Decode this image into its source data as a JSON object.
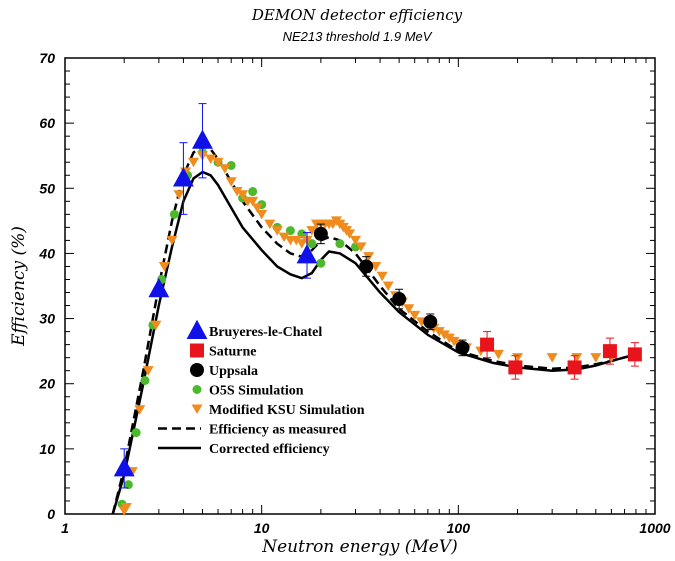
{
  "chart_data": {
    "type": "scatter",
    "title": "DEMON detector efficiency",
    "subtitle": "NE213 threshold 1.9 MeV",
    "xlabel": "Neutron energy (MeV)",
    "ylabel": "Efficiency (%)",
    "xscale": "log",
    "xlim": [
      1,
      1000
    ],
    "ylim": [
      0,
      70
    ],
    "x_ticks": [
      1,
      10,
      100,
      1000
    ],
    "x_tick_labels": [
      "1",
      "10",
      "100",
      "1000"
    ],
    "y_ticks": [
      0,
      10,
      20,
      30,
      40,
      50,
      60,
      70
    ],
    "y_tick_labels": [
      "0",
      "10",
      "20",
      "30",
      "40",
      "50",
      "60",
      "70"
    ],
    "legend_position": "center-left",
    "series": [
      {
        "name": "Bruyeres-le-Chatel",
        "marker": "triangle",
        "color": "#1010e8",
        "x": [
          2.0,
          3.0,
          4.0,
          5.0,
          17.0
        ],
        "y": [
          7.0,
          34.5,
          51.5,
          57.3,
          39.7
        ],
        "err": [
          3.0,
          0.0,
          5.5,
          5.7,
          3.5
        ]
      },
      {
        "name": "Saturne",
        "marker": "square",
        "color": "#e8141c",
        "x": [
          140,
          195,
          390,
          590,
          790
        ],
        "y": [
          26.0,
          22.5,
          22.5,
          25.0,
          24.5
        ],
        "err": [
          2.0,
          1.8,
          1.8,
          2.0,
          1.8
        ]
      },
      {
        "name": "Uppsala",
        "marker": "circle",
        "color": "#000000",
        "x": [
          20,
          34,
          50,
          72,
          105
        ],
        "y": [
          43.0,
          38.0,
          33.0,
          29.5,
          25.5
        ],
        "err": [
          1.5,
          1.5,
          1.5,
          1.2,
          1.2
        ]
      },
      {
        "name": "O5S Simulation",
        "marker": "small-circle",
        "color": "#4cb82c",
        "x": [
          1.95,
          2.1,
          2.3,
          2.55,
          2.8,
          3.1,
          3.6,
          4.2,
          5.0,
          6.0,
          7.0,
          8.0,
          9.0,
          10.0,
          12.0,
          14.0,
          16.0,
          18.0,
          20.0,
          25.0,
          30.0
        ],
        "y": [
          1.5,
          4.5,
          12.5,
          20.5,
          29.0,
          36.0,
          46.0,
          52.0,
          55.5,
          54.0,
          53.5,
          48.5,
          49.5,
          47.5,
          44.0,
          43.5,
          43.0,
          41.5,
          38.5,
          41.5,
          41.0
        ]
      },
      {
        "name": "Modified KSU Simulation",
        "marker": "down-triangle",
        "color": "#f08c1e",
        "x": [
          2.0,
          2.05,
          2.2,
          2.4,
          2.65,
          2.9,
          3.2,
          3.5,
          3.8,
          4.1,
          4.5,
          5.0,
          5.5,
          6.0,
          6.5,
          7.0,
          7.5,
          8.0,
          8.5,
          9.0,
          9.5,
          10.0,
          11.0,
          12.0,
          13.0,
          14.0,
          15.0,
          16.0,
          17.0,
          18.0,
          19.0,
          20.0,
          21.0,
          22.0,
          23.0,
          24.0,
          25.0,
          26.0,
          27.0,
          28.0,
          30.0,
          32.0,
          35.0,
          38.0,
          41.0,
          44.0,
          48.0,
          52.0,
          56.0,
          60.0,
          65.0,
          70.0,
          75.0,
          80.0,
          85.0,
          90.0,
          95.0,
          100.0,
          110.0,
          130.0,
          160.0,
          200.0,
          300.0,
          400.0,
          500.0,
          600.0
        ],
        "y": [
          0.5,
          1.0,
          6.5,
          16.0,
          22.0,
          29.0,
          38.0,
          42.0,
          49.0,
          52.5,
          54.0,
          55.0,
          54.5,
          54.0,
          53.0,
          51.0,
          49.5,
          49.0,
          48.0,
          48.0,
          47.0,
          46.0,
          44.5,
          43.5,
          42.5,
          42.0,
          42.0,
          41.5,
          42.0,
          43.5,
          44.5,
          44.5,
          44.5,
          44.5,
          44.5,
          45.0,
          44.5,
          44.0,
          43.5,
          43.0,
          42.0,
          41.0,
          39.5,
          38.0,
          36.5,
          35.0,
          33.5,
          32.5,
          31.5,
          30.5,
          29.5,
          29.0,
          28.5,
          28.0,
          27.5,
          27.0,
          26.5,
          26.0,
          25.5,
          25.0,
          24.5,
          24.0,
          24.0,
          24.0,
          24.0,
          24.0
        ]
      },
      {
        "name": "Efficiency as measured",
        "marker": "dashed-line",
        "color": "#000000",
        "x": [
          1.75,
          2.0,
          2.5,
          3.0,
          3.5,
          4.0,
          4.5,
          5.0,
          5.5,
          6.0,
          7.0,
          8.0,
          10.0,
          12.0,
          14.0,
          16.0,
          18.0,
          20.0,
          22.0,
          25.0,
          30.0,
          40.0,
          50.0,
          70.0,
          100.0,
          150.0,
          200.0,
          300.0,
          400.0,
          500.0,
          600.0,
          800.0
        ],
        "y": [
          0.0,
          7.0,
          22.0,
          35.0,
          45.0,
          52.0,
          55.5,
          56.5,
          56.0,
          54.5,
          51.0,
          48.0,
          44.0,
          41.5,
          40.0,
          39.5,
          40.5,
          42.0,
          42.5,
          42.0,
          40.0,
          35.0,
          31.5,
          28.0,
          25.0,
          23.5,
          22.8,
          22.3,
          22.5,
          23.0,
          23.5,
          24.5
        ]
      },
      {
        "name": "Corrected efficiency",
        "marker": "solid-line",
        "color": "#000000",
        "x": [
          1.75,
          2.0,
          2.5,
          3.0,
          3.5,
          4.0,
          4.5,
          5.0,
          5.5,
          6.0,
          7.0,
          8.0,
          10.0,
          12.0,
          14.0,
          16.0,
          18.0,
          20.0,
          22.0,
          25.0,
          30.0,
          40.0,
          50.0,
          70.0,
          100.0,
          150.0,
          200.0,
          300.0,
          400.0,
          500.0,
          600.0,
          800.0
        ],
        "y": [
          0.0,
          6.0,
          20.0,
          32.0,
          41.0,
          48.0,
          51.5,
          52.5,
          52.0,
          50.5,
          47.0,
          44.0,
          40.5,
          38.0,
          36.8,
          36.2,
          37.0,
          39.0,
          40.3,
          40.0,
          38.5,
          34.0,
          31.0,
          27.5,
          24.8,
          23.2,
          22.5,
          22.0,
          22.2,
          22.8,
          23.5,
          24.5
        ]
      }
    ]
  }
}
